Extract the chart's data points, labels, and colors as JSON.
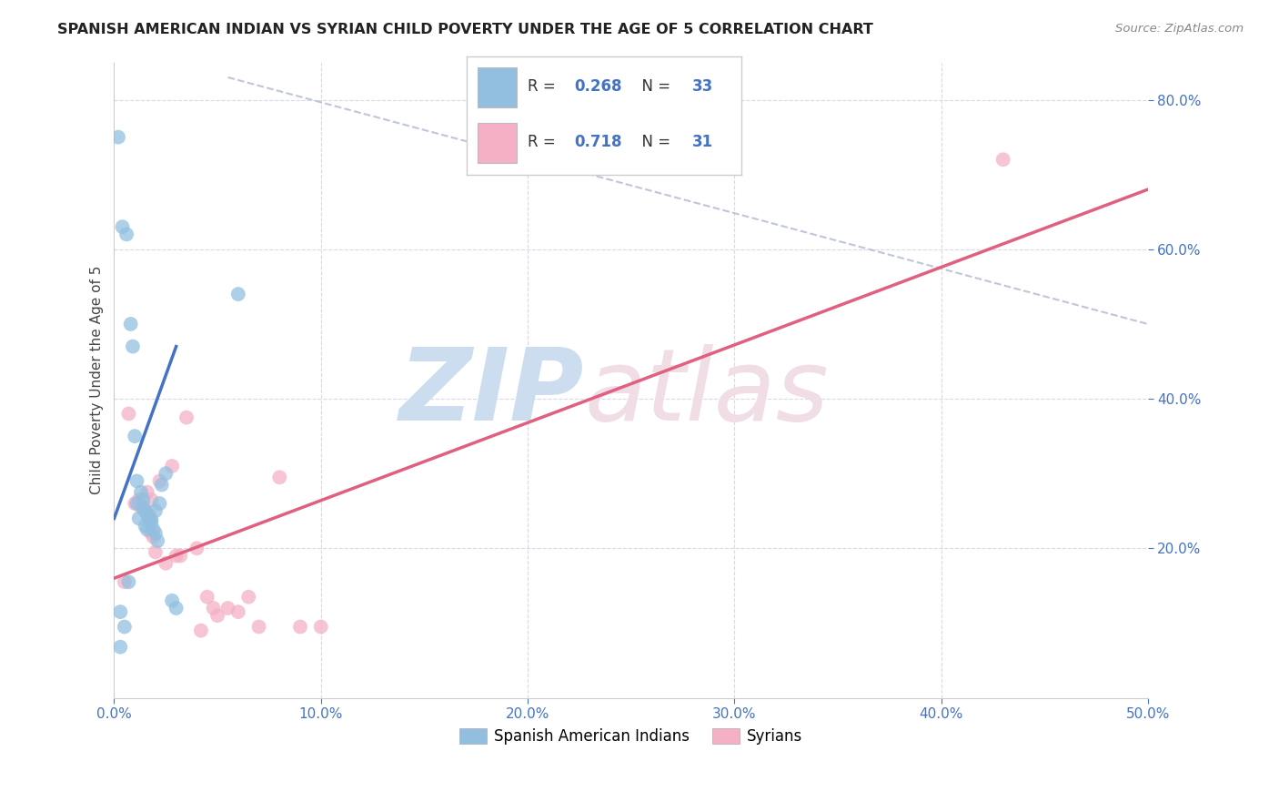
{
  "title": "SPANISH AMERICAN INDIAN VS SYRIAN CHILD POVERTY UNDER THE AGE OF 5 CORRELATION CHART",
  "source": "Source: ZipAtlas.com",
  "ylabel": "Child Poverty Under the Age of 5",
  "xlim": [
    0.0,
    0.5
  ],
  "ylim": [
    0.0,
    0.85
  ],
  "xticks": [
    0.0,
    0.1,
    0.2,
    0.3,
    0.4,
    0.5
  ],
  "yticks": [
    0.0,
    0.2,
    0.4,
    0.6,
    0.8
  ],
  "right_yticks": [
    0.2,
    0.4,
    0.6,
    0.8
  ],
  "blue_scatter_x": [
    0.002,
    0.003,
    0.003,
    0.004,
    0.005,
    0.006,
    0.007,
    0.008,
    0.009,
    0.01,
    0.011,
    0.011,
    0.012,
    0.013,
    0.014,
    0.014,
    0.015,
    0.015,
    0.016,
    0.016,
    0.017,
    0.018,
    0.018,
    0.019,
    0.02,
    0.02,
    0.021,
    0.022,
    0.023,
    0.025,
    0.028,
    0.03,
    0.06
  ],
  "blue_scatter_y": [
    0.75,
    0.068,
    0.115,
    0.63,
    0.095,
    0.62,
    0.155,
    0.5,
    0.47,
    0.35,
    0.29,
    0.26,
    0.24,
    0.275,
    0.265,
    0.255,
    0.25,
    0.23,
    0.245,
    0.225,
    0.24,
    0.238,
    0.235,
    0.225,
    0.22,
    0.25,
    0.21,
    0.26,
    0.285,
    0.3,
    0.13,
    0.12,
    0.54
  ],
  "pink_scatter_x": [
    0.005,
    0.007,
    0.01,
    0.012,
    0.013,
    0.015,
    0.016,
    0.017,
    0.018,
    0.018,
    0.019,
    0.02,
    0.022,
    0.025,
    0.028,
    0.03,
    0.032,
    0.035,
    0.04,
    0.042,
    0.045,
    0.048,
    0.05,
    0.055,
    0.06,
    0.065,
    0.07,
    0.08,
    0.09,
    0.1,
    0.43
  ],
  "pink_scatter_y": [
    0.155,
    0.38,
    0.26,
    0.265,
    0.255,
    0.25,
    0.275,
    0.245,
    0.22,
    0.265,
    0.215,
    0.195,
    0.29,
    0.18,
    0.31,
    0.19,
    0.19,
    0.375,
    0.2,
    0.09,
    0.135,
    0.12,
    0.11,
    0.12,
    0.115,
    0.135,
    0.095,
    0.295,
    0.095,
    0.095,
    0.72
  ],
  "blue_R": 0.268,
  "blue_N": 33,
  "pink_R": 0.718,
  "pink_N": 31,
  "blue_line_x": [
    0.0,
    0.03
  ],
  "blue_line_y": [
    0.24,
    0.47
  ],
  "pink_line_x": [
    0.0,
    0.5
  ],
  "pink_line_y": [
    0.16,
    0.68
  ],
  "diag_line_x": [
    0.055,
    0.5
  ],
  "diag_line_y": [
    0.83,
    0.5
  ],
  "blue_color": "#92bfe0",
  "pink_color": "#f5b0c5",
  "blue_line_color": "#4472c4",
  "pink_line_color": "#e06080",
  "diag_color": "#b0b8d0",
  "legend_label_blue": "Spanish American Indians",
  "legend_label_pink": "Syrians",
  "background_color": "#ffffff",
  "grid_color": "#d8d8e8"
}
